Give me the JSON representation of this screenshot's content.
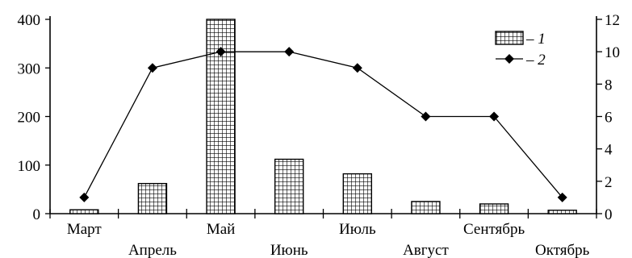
{
  "chart_data": {
    "type": "bar+line",
    "categories": [
      "Март",
      "Апрель",
      "Май",
      "Июнь",
      "Июль",
      "Август",
      "Сентябрь",
      "Октябрь"
    ],
    "series": [
      {
        "name": "– 1",
        "type": "bar",
        "axis": "left",
        "values": [
          8,
          62,
          400,
          112,
          82,
          25,
          20,
          7
        ]
      },
      {
        "name": "– 2",
        "type": "line",
        "axis": "right",
        "values": [
          1,
          9,
          10,
          10,
          9,
          6,
          6,
          1
        ]
      }
    ],
    "y_left": {
      "ylim": [
        0,
        400
      ],
      "ticks": [
        0,
        100,
        200,
        300,
        400
      ]
    },
    "y_right": {
      "ylim": [
        0,
        12
      ],
      "ticks": [
        0,
        2,
        4,
        6,
        8,
        10,
        12
      ]
    },
    "legend_placement": "top-right",
    "grid": false,
    "bar_fill": "crosshatch",
    "colors": {
      "ink": "#000000",
      "background": "#ffffff"
    }
  }
}
